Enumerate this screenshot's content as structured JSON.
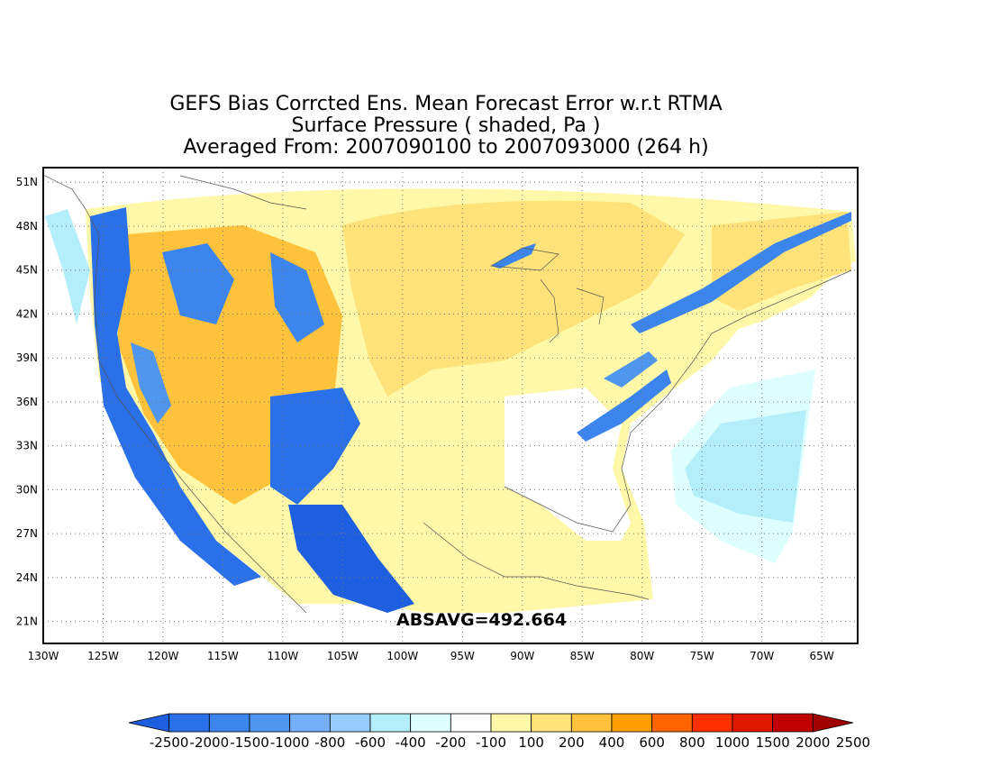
{
  "title": {
    "line1": "GEFS Bias Corrcted Ens. Mean Forecast Error w.r.t RTMA",
    "line2": "Surface Pressure ( shaded, Pa )",
    "line3": "Averaged From: 2007090100 to 2007093000 (264 h)"
  },
  "annotation": "ABSAVG=492.664",
  "map": {
    "lon_range": [
      -130,
      -62
    ],
    "lat_range": [
      19.5,
      52
    ],
    "lon_ticks": [
      "130W",
      "125W",
      "120W",
      "115W",
      "110W",
      "105W",
      "100W",
      "95W",
      "90W",
      "85W",
      "80W",
      "75W",
      "70W",
      "65W"
    ],
    "lat_ticks": [
      "51N",
      "48N",
      "45N",
      "42N",
      "39N",
      "36N",
      "33N",
      "30N",
      "27N",
      "24N",
      "21N"
    ],
    "grid": "dotted"
  },
  "colorbar": {
    "labels": [
      "-2500",
      "-2000",
      "-1500",
      "-1000",
      "-800",
      "-600",
      "-400",
      "-200",
      "-100",
      "100",
      "200",
      "400",
      "600",
      "800",
      "1000",
      "1500",
      "2000",
      "2500"
    ],
    "colors": [
      "#1e5fe0",
      "#2a70e8",
      "#3c85ec",
      "#4f96ef",
      "#74b0f7",
      "#96cbfb",
      "#b4eefa",
      "#ddffff",
      "#ffffff",
      "#fff8a8",
      "#ffe27a",
      "#ffc23c",
      "#ff9e00",
      "#ff6400",
      "#ff3000",
      "#e01800",
      "#c00000",
      "#a00000"
    ]
  }
}
